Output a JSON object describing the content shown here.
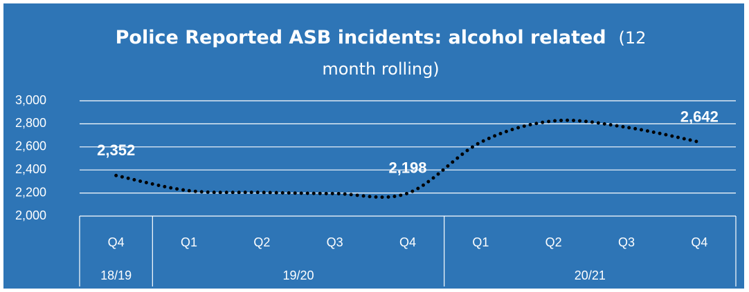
{
  "chart_data": {
    "type": "line",
    "title": "Police Reported ASB incidents:  alcohol related",
    "subtitle": "(12 month rolling)",
    "categories": [
      "Q4",
      "Q1",
      "Q2",
      "Q3",
      "Q4",
      "Q1",
      "Q2",
      "Q3",
      "Q4"
    ],
    "category_groups": [
      {
        "label": "18/19",
        "count": 1
      },
      {
        "label": "19/20",
        "count": 4
      },
      {
        "label": "20/21",
        "count": 4
      }
    ],
    "values": [
      2352,
      2220,
      2205,
      2195,
      2198,
      2640,
      2825,
      2770,
      2642
    ],
    "value_labels": [
      "2,352",
      null,
      null,
      null,
      "2,198",
      null,
      null,
      null,
      "2,642"
    ],
    "color": "#000000",
    "ylim": [
      2000,
      3000
    ],
    "yticks": [
      {
        "value": 2000,
        "label": "2,000"
      },
      {
        "value": 2200,
        "label": "2,200"
      },
      {
        "value": 2400,
        "label": "2,400"
      },
      {
        "value": 2600,
        "label": "2,600"
      },
      {
        "value": 2800,
        "label": "2,800"
      },
      {
        "value": 3000,
        "label": "3,000"
      }
    ],
    "grid": true
  }
}
